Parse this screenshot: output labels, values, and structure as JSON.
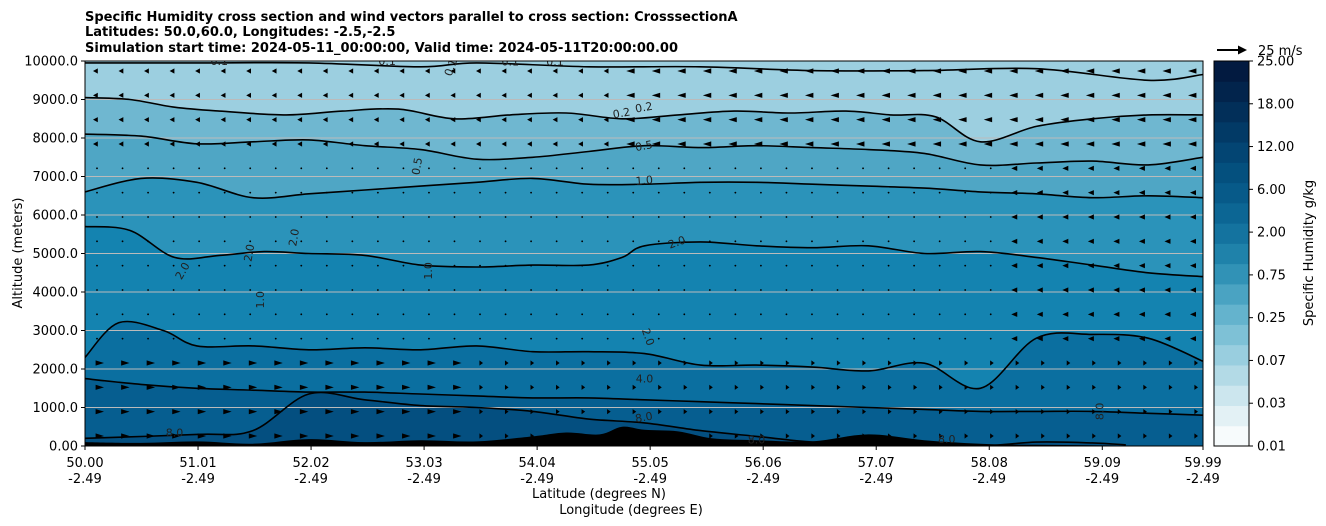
{
  "chart_data": {
    "type": "heatmap",
    "title": [
      "Specific Humidity cross section and wind vectors parallel to cross section: CrosssectionA",
      "Latitudes: 50.0,60.0, Longitudes: -2.5,-2.5",
      "Simulation start time: 2024-05-11_00:00:00, Valid time: 2024-05-11T20:00:00.00"
    ],
    "ylabel": "Altitude (meters)",
    "xlabel_lat": "Latitude (degrees N)",
    "xlabel_lon": "Longitude (degrees E)",
    "ylim": [
      0,
      10000
    ],
    "yticks": [
      "0.00",
      "1000.0",
      "2000.0",
      "3000.0",
      "4000.0",
      "5000.0",
      "6000.0",
      "7000.0",
      "8000.0",
      "9000.0",
      "10000.0"
    ],
    "ytick_values": [
      0,
      1000,
      2000,
      3000,
      4000,
      5000,
      6000,
      7000,
      8000,
      9000,
      10000
    ],
    "xticks_lat": [
      "50.00",
      "51.01",
      "52.02",
      "53.03",
      "54.04",
      "55.05",
      "56.06",
      "57.07",
      "58.08",
      "59.09",
      "59.99"
    ],
    "xticks_lon": [
      "-2.49",
      "-2.49",
      "-2.49",
      "-2.49",
      "-2.49",
      "-2.49",
      "-2.49",
      "-2.49",
      "-2.49",
      "-2.49",
      "-2.49"
    ],
    "grid": "horizontal",
    "colorbar": {
      "label": "Specific Humidity g/kg",
      "ticks": [
        "0.01",
        "0.03",
        "0.07",
        "0.25",
        "0.75",
        "2.00",
        "6.00",
        "12.00",
        "18.00",
        "25.00"
      ],
      "colors": [
        "#f7fbfc",
        "#e3f1f5",
        "#cce6ee",
        "#b3dae6",
        "#99cedf",
        "#7ec1d6",
        "#64b3cd",
        "#4aa3c2",
        "#3192b6",
        "#1f82aa",
        "#14739f",
        "#0c6694",
        "#075a89",
        "#04507e",
        "#034573",
        "#023a66",
        "#022f59",
        "#02244c",
        "#021a40"
      ]
    },
    "reference_vector": {
      "label": "25 m/s",
      "speed": 25
    },
    "contour_levels": [
      0.1,
      0.2,
      0.5,
      1.0,
      2.0,
      4.0,
      8.0
    ],
    "contour_labels": [
      "0.1",
      "0.1",
      "0.1",
      "0.1",
      "0.1",
      "0.2",
      "0.2",
      "0.5",
      "0.5",
      "1.0",
      "1.0",
      "1.0",
      "2.0",
      "2.0",
      "2.0",
      "2.0",
      "2.0",
      "4.0",
      "8.0",
      "8.0",
      "8.0",
      "8.0",
      "8.0"
    ],
    "contours": [
      {
        "level": 0.1,
        "x": [
          50.0,
          51.0,
          52.0,
          53.0,
          53.5,
          54.5,
          55.5,
          56.5,
          57.5,
          58.5,
          59.5,
          59.99
        ],
        "y": [
          9950,
          9950,
          9950,
          9850,
          9950,
          9850,
          9850,
          9750,
          9750,
          9800,
          9500,
          9650
        ]
      },
      {
        "level": 0.2,
        "x": [
          50.0,
          50.4,
          50.8,
          51.2,
          51.8,
          52.3,
          52.8,
          53.3,
          53.8,
          54.3,
          54.8,
          55.3,
          55.8,
          56.3,
          56.8,
          57.2,
          57.6,
          58.0,
          58.5,
          59.0,
          59.5,
          59.99
        ],
        "y": [
          9050,
          9000,
          8800,
          8700,
          8600,
          8700,
          8750,
          8500,
          8600,
          8650,
          8500,
          8600,
          8700,
          8650,
          8700,
          8600,
          8550,
          7900,
          8300,
          8500,
          8600,
          8600
        ]
      },
      {
        "level": 0.5,
        "x": [
          50.0,
          50.5,
          51.0,
          51.5,
          52.0,
          52.5,
          53.0,
          53.5,
          54.0,
          54.5,
          55.0,
          55.5,
          56.0,
          56.5,
          57.0,
          57.5,
          58.0,
          58.5,
          59.0,
          59.5,
          59.99
        ],
        "y": [
          8100,
          8050,
          7850,
          7900,
          7950,
          7800,
          7700,
          7450,
          7500,
          7650,
          7800,
          7750,
          7800,
          7750,
          7700,
          7600,
          7300,
          7350,
          7400,
          7300,
          7500
        ]
      },
      {
        "level": 1.0,
        "x": [
          50.0,
          50.5,
          51.0,
          51.5,
          52.0,
          52.5,
          53.0,
          53.5,
          54.0,
          54.5,
          55.0,
          55.5,
          56.0,
          56.5,
          57.0,
          57.5,
          58.0,
          58.5,
          59.0,
          59.5,
          59.99
        ],
        "y": [
          6600,
          6950,
          6850,
          6450,
          6550,
          6650,
          6750,
          6850,
          6950,
          6800,
          6800,
          6850,
          6850,
          6800,
          6750,
          6700,
          6600,
          6550,
          6450,
          6500,
          6450
        ]
      },
      {
        "level": 2.0,
        "x": [
          50.0,
          50.4,
          50.8,
          51.2,
          51.6,
          52.0,
          52.5,
          53.0,
          53.5,
          54.0,
          54.5,
          54.8,
          55.0,
          55.5,
          56.0,
          56.5,
          57.0,
          57.5,
          58.0,
          58.5,
          59.0,
          59.5,
          59.99
        ],
        "y": [
          5700,
          5600,
          4900,
          4950,
          5050,
          5000,
          4950,
          4700,
          4650,
          4700,
          4700,
          4900,
          5200,
          5300,
          5200,
          5150,
          5200,
          5000,
          5050,
          4900,
          4700,
          4500,
          4400
        ]
      },
      {
        "level": 4.0,
        "x": [
          50.0,
          50.3,
          50.7,
          51.0,
          51.5,
          52.0,
          52.5,
          53.0,
          53.5,
          54.0,
          54.5,
          55.0,
          55.5,
          56.0,
          56.5,
          57.0,
          57.5,
          58.0,
          58.5,
          59.0,
          59.5,
          59.99
        ],
        "y": [
          2300,
          3200,
          3000,
          2600,
          2600,
          2500,
          2550,
          2500,
          2600,
          2450,
          2450,
          2400,
          2100,
          2100,
          2050,
          1950,
          2150,
          1500,
          2800,
          2900,
          2800,
          2200
        ]
      },
      {
        "level": 8.0,
        "x": [
          50.0,
          50.5,
          51.0,
          51.5,
          52.0,
          52.5,
          53.0,
          53.5,
          54.0,
          54.5,
          55.0,
          55.5,
          56.0,
          56.5,
          57.0,
          57.5,
          58.0,
          58.5,
          59.0,
          59.5,
          59.99
        ],
        "y": [
          1750,
          1600,
          1500,
          1450,
          1400,
          1400,
          1350,
          1300,
          1250,
          1250,
          1200,
          1150,
          1100,
          1050,
          1000,
          950,
          900,
          900,
          900,
          850,
          800
        ]
      },
      {
        "level": 8.0,
        "x": [
          50.0,
          51.0,
          51.5,
          52.0,
          52.5,
          53.0,
          53.5,
          54.0,
          54.5,
          55.0,
          55.5,
          56.0,
          56.5,
          57.0,
          57.5,
          58.0,
          58.5,
          59.0,
          59.3
        ],
        "y": [
          200,
          300,
          400,
          1350,
          1200,
          1050,
          1000,
          900,
          700,
          600,
          400,
          250,
          100,
          50,
          50,
          0,
          100,
          80,
          30
        ]
      }
    ],
    "terrain": {
      "x": [
        50.0,
        50.5,
        51.0,
        51.5,
        52.0,
        52.5,
        53.0,
        53.5,
        54.0,
        54.3,
        54.6,
        54.8,
        55.0,
        55.3,
        55.6,
        56.0,
        56.5,
        57.0,
        57.5,
        58.0,
        58.5,
        59.0,
        59.5,
        59.99
      ],
      "y": [
        100,
        80,
        120,
        60,
        180,
        100,
        150,
        120,
        250,
        350,
        300,
        500,
        420,
        380,
        200,
        150,
        120,
        300,
        150,
        60,
        30,
        20,
        10,
        0
      ]
    }
  },
  "colors": {
    "contour": "#000000",
    "grid": "#bbbbbb",
    "terrain": "#000000"
  }
}
